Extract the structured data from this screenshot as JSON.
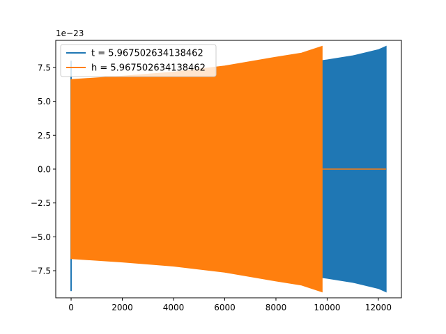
{
  "chart_data": {
    "type": "line",
    "title": "",
    "xlabel": "",
    "ylabel": "",
    "offset_text": "1e−23",
    "xlim": [
      -600,
      12900
    ],
    "ylim": [
      -9.5,
      9.5
    ],
    "xticks": [
      0,
      2000,
      4000,
      6000,
      8000,
      10000,
      12000
    ],
    "xtick_labels": [
      "0",
      "2000",
      "4000",
      "6000",
      "8000",
      "10000",
      "12000"
    ],
    "yticks": [
      -7.5,
      -5.0,
      -2.5,
      0.0,
      2.5,
      5.0,
      7.5
    ],
    "ytick_labels": [
      "−7.5",
      "−5.0",
      "−2.5",
      "0.0",
      "2.5",
      "5.0",
      "7.5"
    ],
    "grid": false,
    "legend_position": "upper-left",
    "series": [
      {
        "name": "t = 5.967502634138462",
        "color": "#1f77b4",
        "kind": "oscillation-envelope",
        "spike": {
          "x": 0,
          "y_min": -9.0,
          "y_max": 8.0
        },
        "envelope_x": [
          30,
          2000,
          4000,
          6000,
          8000,
          9800,
          10000,
          11000,
          12000,
          12300
        ],
        "envelope_y_max": [
          6.55,
          6.75,
          7.0,
          7.3,
          7.7,
          8.0,
          8.05,
          8.35,
          8.8,
          9.05
        ],
        "envelope_y_min": [
          -6.55,
          -6.75,
          -7.0,
          -7.3,
          -7.7,
          -8.0,
          -8.05,
          -8.35,
          -8.8,
          -9.05
        ]
      },
      {
        "name": "h = 5.967502634138462",
        "color": "#ff7f0e",
        "kind": "oscillation-envelope",
        "envelope_x": [
          0,
          2000,
          4000,
          6000,
          8000,
          9000,
          9800
        ],
        "envelope_y_max": [
          6.6,
          6.85,
          7.15,
          7.6,
          8.25,
          8.55,
          9.05
        ],
        "envelope_y_min": [
          -6.6,
          -6.85,
          -7.15,
          -7.6,
          -8.25,
          -8.55,
          -9.05
        ],
        "tail": {
          "x": [
            9800,
            12300
          ],
          "y": [
            0,
            0
          ]
        }
      }
    ]
  }
}
